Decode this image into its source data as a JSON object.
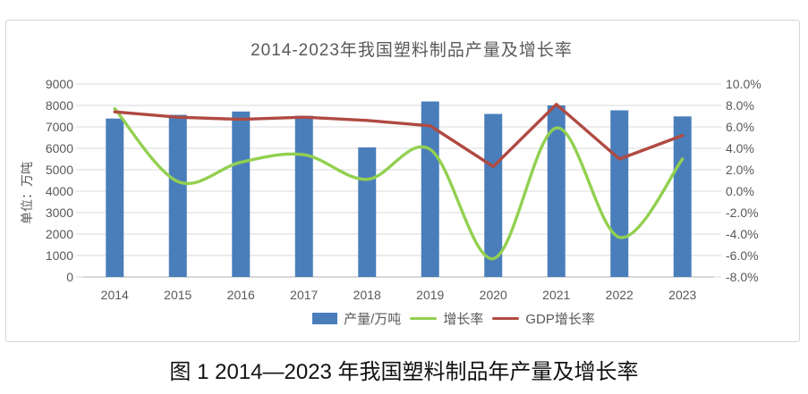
{
  "figure": {
    "title": "2014-2023年我国塑料制品产量及增长率",
    "y_left_label": "单位：万吨",
    "legend": [
      {
        "label": "产量/万吨",
        "type": "bar",
        "color": "#4A7EBB"
      },
      {
        "label": "增长率",
        "type": "line",
        "color": "#92D050"
      },
      {
        "label": "GDP增长率",
        "type": "line",
        "color": "#B04A42"
      }
    ]
  },
  "caption": "图 1 2014—2023 年我国塑料制品年产量及增长率",
  "chart_data": {
    "type": "bar",
    "subtype": "combo-bar-line",
    "title": "2014-2023年我国塑料制品产量及增长率",
    "categories": [
      "2014",
      "2015",
      "2016",
      "2017",
      "2018",
      "2019",
      "2020",
      "2021",
      "2022",
      "2023"
    ],
    "series": [
      {
        "name": "产量/万吨",
        "type": "bar",
        "axis": "left",
        "color": "#4A7EBB",
        "smooth": false,
        "values": [
          7387.8,
          7560.8,
          7717.2,
          7515.5,
          6042.2,
          8184.2,
          7603.2,
          8004.0,
          7771.6,
          7488.5
        ]
      },
      {
        "name": "增长率",
        "type": "line",
        "axis": "right",
        "color": "#92D050",
        "smooth": true,
        "values": [
          7.7,
          0.9,
          2.7,
          3.4,
          1.1,
          3.9,
          -6.3,
          5.9,
          -4.3,
          3.0
        ]
      },
      {
        "name": "GDP增长率",
        "type": "line",
        "axis": "right",
        "color": "#B04A42",
        "smooth": false,
        "values": [
          7.4,
          6.9,
          6.7,
          6.9,
          6.6,
          6.1,
          2.3,
          8.1,
          3.0,
          5.2
        ]
      }
    ],
    "y_left": {
      "label": "单位：万吨",
      "min": 0,
      "max": 9000,
      "step": 1000,
      "ticks": [
        "9000",
        "8000",
        "7000",
        "6000",
        "5000",
        "4000",
        "3000",
        "2000",
        "1000",
        "0"
      ]
    },
    "y_right": {
      "min": -8,
      "max": 10,
      "step": 2,
      "ticks": [
        "10.0%",
        "8.0%",
        "6.0%",
        "4.0%",
        "2.0%",
        "0.0%",
        "-2.0%",
        "-4.0%",
        "-6.0%",
        "-8.0%"
      ]
    },
    "grid": true,
    "legend_position": "bottom",
    "colors": {
      "gridline": "#D9D9D9",
      "axis_line": "#BFBFBF",
      "tick_text": "#595959"
    }
  }
}
